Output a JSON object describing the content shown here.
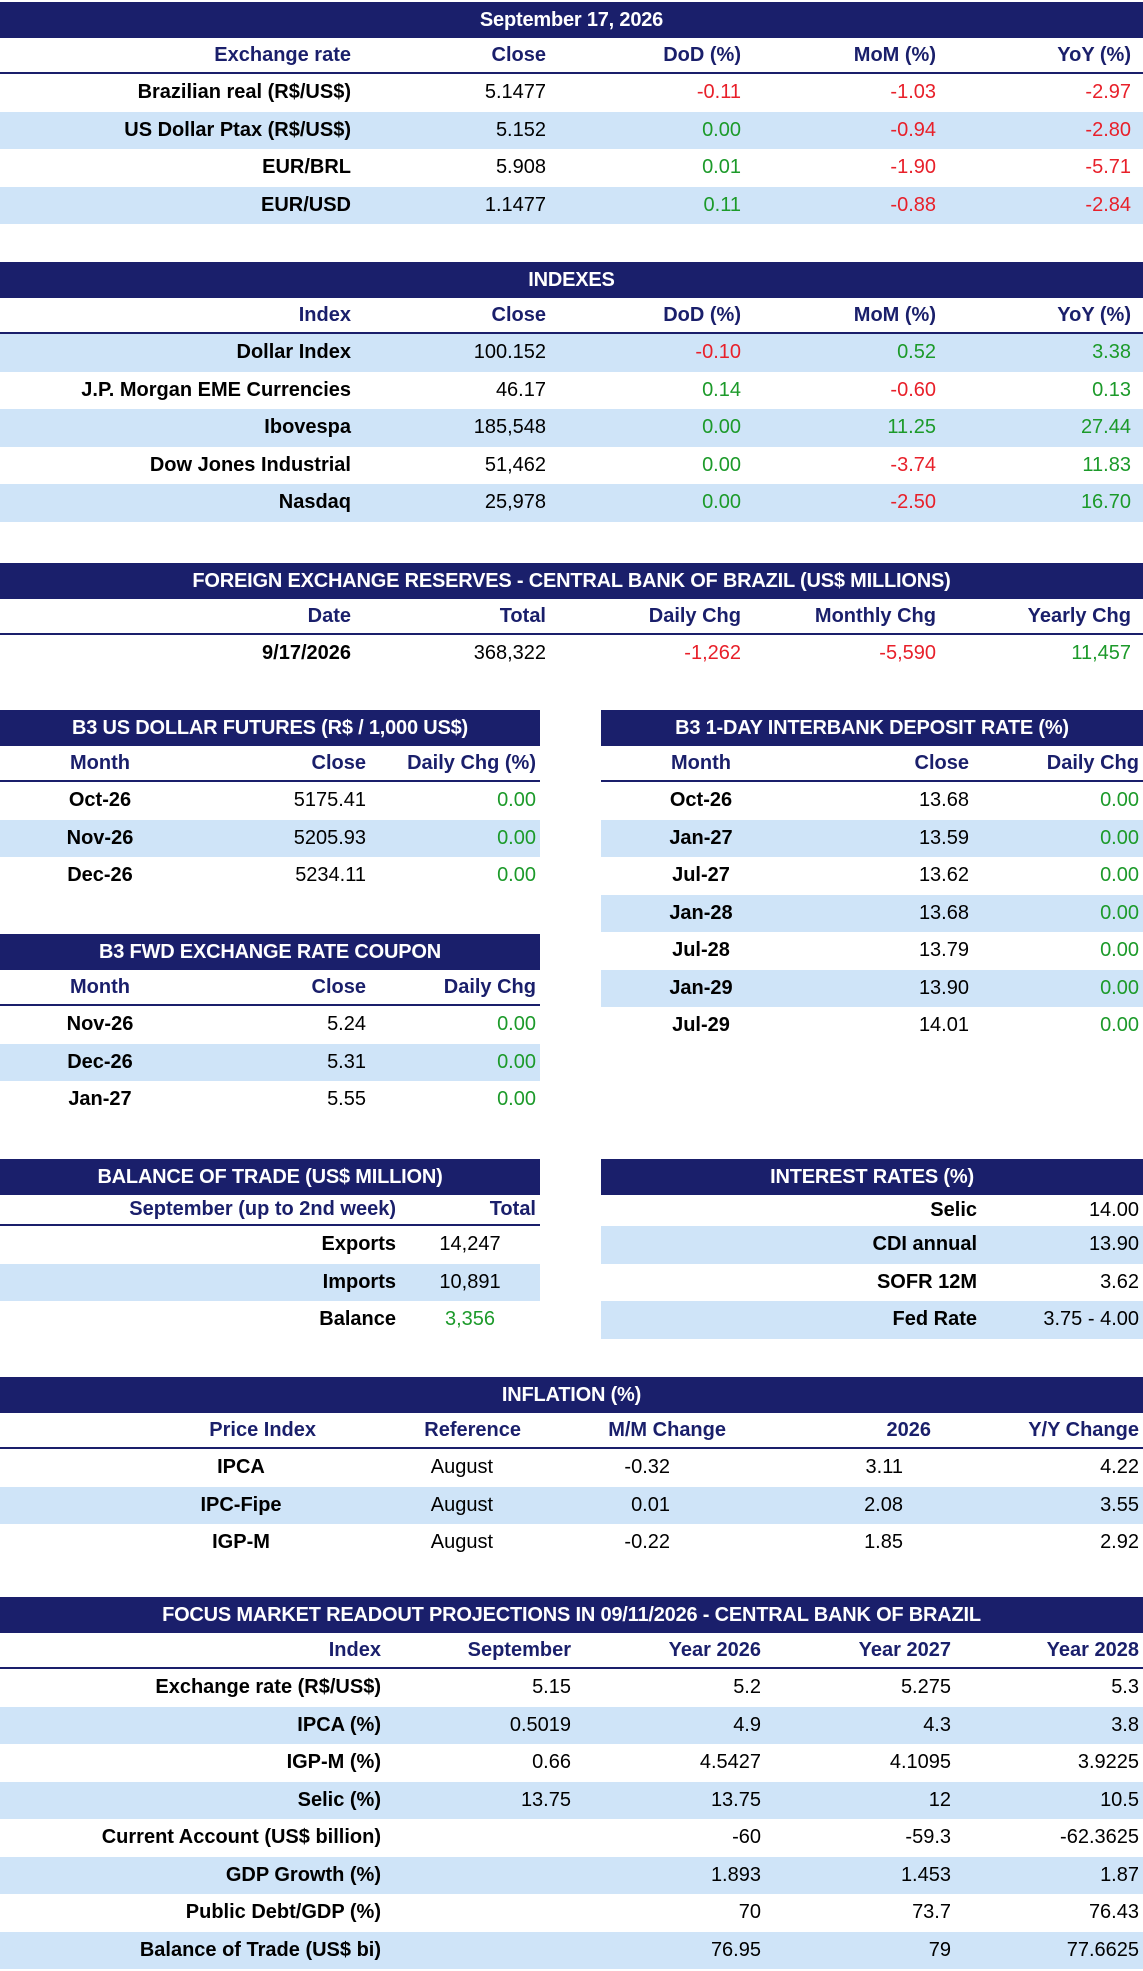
{
  "exchange": {
    "date": "September 17, 2026",
    "headers": [
      "Exchange rate",
      "Close",
      "DoD (%)",
      "MoM (%)",
      "YoY (%)"
    ],
    "rows": [
      [
        "Brazilian real (R$/US$)",
        "5.1477",
        "-0.11",
        "-1.03",
        "-2.97"
      ],
      [
        "US Dollar Ptax (R$/US$)",
        "5.152",
        "0.00",
        "-0.94",
        "-2.80"
      ],
      [
        "EUR/BRL",
        "5.908",
        "0.01",
        "-1.90",
        "-5.71"
      ],
      [
        "EUR/USD",
        "1.1477",
        "0.11",
        "-0.88",
        "-2.84"
      ]
    ]
  },
  "indexes": {
    "title": "INDEXES",
    "headers": [
      "Index",
      "Close",
      "DoD (%)",
      "MoM (%)",
      "YoY (%)"
    ],
    "rows": [
      [
        "Dollar Index",
        "100.152",
        "-0.10",
        "0.52",
        "3.38"
      ],
      [
        "J.P. Morgan EME Currencies",
        "46.17",
        "0.14",
        "-0.60",
        "0.13"
      ],
      [
        "Ibovespa",
        "185,548",
        "0.00",
        "11.25",
        "27.44"
      ],
      [
        "Dow Jones Industrial",
        "51,462",
        "0.00",
        "-3.74",
        "11.83"
      ],
      [
        "Nasdaq",
        "25,978",
        "0.00",
        "-2.50",
        "16.70"
      ]
    ]
  },
  "reserves": {
    "title": "FOREIGN EXCHANGE RESERVES - CENTRAL BANK OF BRAZIL (US$ MILLIONS)",
    "headers": [
      "Date",
      "Total",
      "Daily Chg",
      "Monthly Chg",
      "Yearly Chg"
    ],
    "rows": [
      [
        "9/17/2026",
        "368,322",
        "-1,262",
        "-5,590",
        "11,457"
      ]
    ]
  },
  "usd_futures": {
    "title": "B3 US DOLLAR FUTURES (R$ / 1,000 US$)",
    "headers": [
      "Month",
      "Close",
      "Daily Chg (%)"
    ],
    "rows": [
      [
        "Oct-26",
        "5175.41",
        "0.00"
      ],
      [
        "Nov-26",
        "5205.93",
        "0.00"
      ],
      [
        "Dec-26",
        "5234.11",
        "0.00"
      ]
    ]
  },
  "interbank": {
    "title": "B3 1-DAY INTERBANK DEPOSIT RATE (%)",
    "headers": [
      "Month",
      "Close",
      "Daily Chg"
    ],
    "rows": [
      [
        "Oct-26",
        "13.68",
        "0.00"
      ],
      [
        "Jan-27",
        "13.59",
        "0.00"
      ],
      [
        "Jul-27",
        "13.62",
        "0.00"
      ],
      [
        "Jan-28",
        "13.68",
        "0.00"
      ],
      [
        "Jul-28",
        "13.79",
        "0.00"
      ],
      [
        "Jan-29",
        "13.90",
        "0.00"
      ],
      [
        "Jul-29",
        "14.01",
        "0.00"
      ]
    ]
  },
  "coupon": {
    "title": "B3 FWD EXCHANGE RATE COUPON",
    "headers": [
      "Month",
      "Close",
      "Daily Chg"
    ],
    "rows": [
      [
        "Nov-26",
        "5.24",
        "0.00"
      ],
      [
        "Dec-26",
        "5.31",
        "0.00"
      ],
      [
        "Jan-27",
        "5.55",
        "0.00"
      ]
    ]
  },
  "trade": {
    "title": "BALANCE OF TRADE (US$ MILLION)",
    "headers": [
      "September (up to 2nd week)",
      "Total"
    ],
    "rows": [
      [
        "Exports",
        "14,247"
      ],
      [
        "Imports",
        "10,891"
      ],
      [
        "Balance",
        "3,356"
      ]
    ]
  },
  "rates": {
    "title": "INTEREST RATES (%)",
    "rows": [
      [
        "Selic",
        "14.00"
      ],
      [
        "CDI annual",
        "13.90"
      ],
      [
        "SOFR 12M",
        "3.62"
      ],
      [
        "Fed Rate",
        "3.75 - 4.00"
      ]
    ]
  },
  "inflation": {
    "title": "INFLATION (%)",
    "headers": [
      "Price Index",
      "Reference",
      "M/M Change",
      "2026",
      "Y/Y Change"
    ],
    "rows": [
      [
        "IPCA",
        "August",
        "-0.32",
        "3.11",
        "4.22"
      ],
      [
        "IPC-Fipe",
        "August",
        "0.01",
        "2.08",
        "3.55"
      ],
      [
        "IGP-M",
        "August",
        "-0.22",
        "1.85",
        "2.92"
      ]
    ]
  },
  "focus": {
    "title": "FOCUS MARKET READOUT PROJECTIONS IN 09/11/2026 - CENTRAL BANK OF BRAZIL",
    "headers": [
      "Index",
      "September",
      "Year 2026",
      "Year 2027",
      "Year 2028"
    ],
    "rows": [
      [
        "Exchange rate (R$/US$)",
        "5.15",
        "5.2",
        "5.275",
        "5.3"
      ],
      [
        "IPCA (%)",
        "0.5019",
        "4.9",
        "4.3",
        "3.8"
      ],
      [
        "IGP-M (%)",
        "0.66",
        "4.5427",
        "4.1095",
        "3.9225"
      ],
      [
        "Selic (%)",
        "13.75",
        "13.75",
        "12",
        "10.5"
      ],
      [
        "Current Account (US$ billion)",
        "",
        "-60",
        "-59.3",
        "-62.3625"
      ],
      [
        "GDP Growth (%)",
        "",
        "1.893",
        "1.453",
        "1.87"
      ],
      [
        "Public Debt/GDP (%)",
        "",
        "70",
        "73.7",
        "76.43"
      ],
      [
        "Balance of Trade (US$ bi)",
        "",
        "76.95",
        "79",
        "77.6625"
      ]
    ]
  },
  "colors": {
    "header_bg": "#1a1f6b",
    "highlight_row": "#cfe4f8",
    "negative": "#e8202a",
    "positive": "#1c9a2a"
  }
}
